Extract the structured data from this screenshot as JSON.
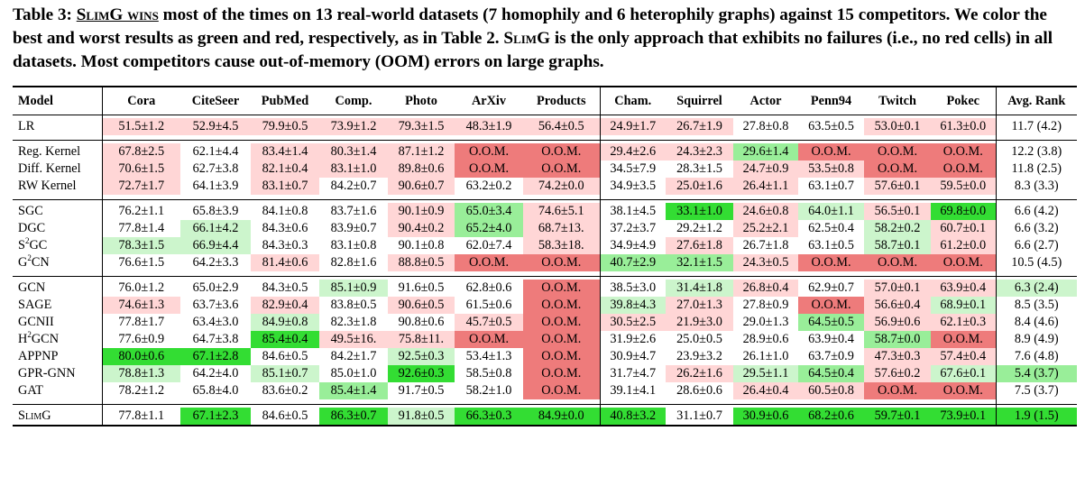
{
  "caption": {
    "label": "Table 3:",
    "highlight": "SlimG wins",
    "text1": " most of the times on 13 real-world datasets (7 homophily and 6 heterophily graphs) against 15 competitors. We color the best and worst results as green and red, respectively, as in Table 2. ",
    "method": "SlimG",
    "text2": " is the only approach that exhibits no failures (i.e., no red cells) in all datasets. Most competitors cause out-of-memory (OOM) errors on large graphs."
  },
  "headers": [
    "Model",
    "Cora",
    "CiteSeer",
    "PubMed",
    "Comp.",
    "Photo",
    "ArXiv",
    "Products",
    "Cham.",
    "Squirrel",
    "Actor",
    "Penn94",
    "Twitch",
    "Pokec",
    "Avg. Rank"
  ],
  "colors": {
    "green_light": "#ccf5cc",
    "green_mid": "#99ee99",
    "green_best": "#33dd33",
    "red_light": "#ffd6d6",
    "red_mid": "#f5a3a3",
    "red_worst": "#ee7b7b"
  },
  "groups": [
    [
      {
        "model": "LR",
        "cells": [
          [
            "51.5±1.2",
            "r1"
          ],
          [
            "52.9±4.5",
            "r1"
          ],
          [
            "79.9±0.5",
            "r1"
          ],
          [
            "73.9±1.2",
            "r1"
          ],
          [
            "79.3±1.5",
            "r1"
          ],
          [
            "48.3±1.9",
            "r1"
          ],
          [
            "56.4±0.5",
            "r1"
          ],
          [
            "24.9±1.7",
            "r1"
          ],
          [
            "26.7±1.9",
            "r1"
          ],
          [
            "27.8±0.8",
            ""
          ],
          [
            "63.5±0.5",
            ""
          ],
          [
            "53.0±0.1",
            "r1"
          ],
          [
            "61.3±0.0",
            "r1"
          ]
        ],
        "avg": "11.7 (4.2)",
        "avgc": ""
      }
    ],
    [
      {
        "model": "Reg. Kernel",
        "cells": [
          [
            "67.8±2.5",
            "r1"
          ],
          [
            "62.1±4.4",
            ""
          ],
          [
            "83.4±1.4",
            "r1"
          ],
          [
            "80.3±1.4",
            "r1"
          ],
          [
            "87.1±1.2",
            "r1"
          ],
          [
            "O.O.M.",
            "r3"
          ],
          [
            "O.O.M.",
            "r3"
          ],
          [
            "29.4±2.6",
            "r1"
          ],
          [
            "24.3±2.3",
            "r1"
          ],
          [
            "29.6±1.4",
            "g2"
          ],
          [
            "O.O.M.",
            "r3"
          ],
          [
            "O.O.M.",
            "r3"
          ],
          [
            "O.O.M.",
            "r3"
          ]
        ],
        "avg": "12.2 (3.8)",
        "avgc": ""
      },
      {
        "model": "Diff. Kernel",
        "cells": [
          [
            "70.6±1.5",
            "r1"
          ],
          [
            "62.7±3.8",
            ""
          ],
          [
            "82.1±0.4",
            "r1"
          ],
          [
            "83.1±1.0",
            "r1"
          ],
          [
            "89.8±0.6",
            "r1"
          ],
          [
            "O.O.M.",
            "r3"
          ],
          [
            "O.O.M.",
            "r3"
          ],
          [
            "34.5±7.9",
            ""
          ],
          [
            "28.3±1.5",
            ""
          ],
          [
            "24.7±0.9",
            "r1"
          ],
          [
            "53.5±0.8",
            "r1"
          ],
          [
            "O.O.M.",
            "r3"
          ],
          [
            "O.O.M.",
            "r3"
          ]
        ],
        "avg": "11.8 (2.5)",
        "avgc": ""
      },
      {
        "model": "RW Kernel",
        "cells": [
          [
            "72.7±1.7",
            "r1"
          ],
          [
            "64.1±3.9",
            ""
          ],
          [
            "83.1±0.7",
            "r1"
          ],
          [
            "84.2±0.7",
            ""
          ],
          [
            "90.6±0.7",
            "r1"
          ],
          [
            "63.2±0.2",
            ""
          ],
          [
            "74.2±0.0",
            "r1"
          ],
          [
            "34.9±3.5",
            ""
          ],
          [
            "25.0±1.6",
            "r1"
          ],
          [
            "26.4±1.1",
            "r1"
          ],
          [
            "63.1±0.7",
            ""
          ],
          [
            "57.6±0.1",
            "r1"
          ],
          [
            "59.5±0.0",
            "r1"
          ]
        ],
        "avg": "8.3 (3.3)",
        "avgc": ""
      }
    ],
    [
      {
        "model": "SGC",
        "cells": [
          [
            "76.2±1.1",
            ""
          ],
          [
            "65.8±3.9",
            ""
          ],
          [
            "84.1±0.8",
            ""
          ],
          [
            "83.7±1.6",
            ""
          ],
          [
            "90.1±0.9",
            "r1"
          ],
          [
            "65.0±3.4",
            "g2"
          ],
          [
            "74.6±5.1",
            "r1"
          ],
          [
            "38.1±4.5",
            ""
          ],
          [
            "33.1±1.0",
            "g3"
          ],
          [
            "24.6±0.8",
            "r1"
          ],
          [
            "64.0±1.1",
            "g1"
          ],
          [
            "56.5±0.1",
            "r1"
          ],
          [
            "69.8±0.0",
            "g3"
          ]
        ],
        "avg": "6.6 (4.2)",
        "avgc": ""
      },
      {
        "model": "DGC",
        "cells": [
          [
            "77.8±1.4",
            ""
          ],
          [
            "66.1±4.2",
            "g1"
          ],
          [
            "84.3±0.6",
            ""
          ],
          [
            "83.9±0.7",
            ""
          ],
          [
            "90.4±0.2",
            "r1"
          ],
          [
            "65.2±4.0",
            "g2"
          ],
          [
            "68.7±13.",
            "r1"
          ],
          [
            "37.2±3.7",
            ""
          ],
          [
            "29.2±1.2",
            ""
          ],
          [
            "25.2±2.1",
            "r1"
          ],
          [
            "62.5±0.4",
            ""
          ],
          [
            "58.2±0.2",
            "g1"
          ],
          [
            "60.7±0.1",
            "r1"
          ]
        ],
        "avg": "6.6 (3.2)",
        "avgc": ""
      },
      {
        "model": "S<sup>2</sup>GC",
        "cells": [
          [
            "78.3±1.5",
            "g1"
          ],
          [
            "66.9±4.4",
            "g1"
          ],
          [
            "84.3±0.3",
            ""
          ],
          [
            "83.1±0.8",
            ""
          ],
          [
            "90.1±0.8",
            ""
          ],
          [
            "62.0±7.4",
            ""
          ],
          [
            "58.3±18.",
            "r1"
          ],
          [
            "34.9±4.9",
            ""
          ],
          [
            "27.6±1.8",
            "r1"
          ],
          [
            "26.7±1.8",
            ""
          ],
          [
            "63.1±0.5",
            ""
          ],
          [
            "58.7±0.1",
            "g1"
          ],
          [
            "61.2±0.0",
            "r1"
          ]
        ],
        "avg": "6.6 (2.7)",
        "avgc": ""
      },
      {
        "model": "G<sup>2</sup>CN",
        "cells": [
          [
            "76.6±1.5",
            ""
          ],
          [
            "64.2±3.3",
            ""
          ],
          [
            "81.4±0.6",
            "r1"
          ],
          [
            "82.8±1.6",
            ""
          ],
          [
            "88.8±0.5",
            "r1"
          ],
          [
            "O.O.M.",
            "r3"
          ],
          [
            "O.O.M.",
            "r3"
          ],
          [
            "40.7±2.9",
            "g2"
          ],
          [
            "32.1±1.5",
            "g2"
          ],
          [
            "24.3±0.5",
            "r1"
          ],
          [
            "O.O.M.",
            "r3"
          ],
          [
            "O.O.M.",
            "r3"
          ],
          [
            "O.O.M.",
            "r3"
          ]
        ],
        "avg": "10.5 (4.5)",
        "avgc": ""
      }
    ],
    [
      {
        "model": "GCN",
        "cells": [
          [
            "76.0±1.2",
            ""
          ],
          [
            "65.0±2.9",
            ""
          ],
          [
            "84.3±0.5",
            ""
          ],
          [
            "85.1±0.9",
            "g1"
          ],
          [
            "91.6±0.5",
            ""
          ],
          [
            "62.8±0.6",
            ""
          ],
          [
            "O.O.M.",
            "r3"
          ],
          [
            "38.5±3.0",
            ""
          ],
          [
            "31.4±1.8",
            "g1"
          ],
          [
            "26.8±0.4",
            "r1"
          ],
          [
            "62.9±0.7",
            ""
          ],
          [
            "57.0±0.1",
            "r1"
          ],
          [
            "63.9±0.4",
            "r1"
          ]
        ],
        "avg": "6.3 (2.4)",
        "avgc": "g1"
      },
      {
        "model": "SAGE",
        "cells": [
          [
            "74.6±1.3",
            "r1"
          ],
          [
            "63.7±3.6",
            ""
          ],
          [
            "82.9±0.4",
            "r1"
          ],
          [
            "83.8±0.5",
            ""
          ],
          [
            "90.6±0.5",
            "r1"
          ],
          [
            "61.5±0.6",
            ""
          ],
          [
            "O.O.M.",
            "r3"
          ],
          [
            "39.8±4.3",
            "g1"
          ],
          [
            "27.0±1.3",
            "r1"
          ],
          [
            "27.8±0.9",
            ""
          ],
          [
            "O.O.M.",
            "r3"
          ],
          [
            "56.6±0.4",
            "r1"
          ],
          [
            "68.9±0.1",
            "g1"
          ]
        ],
        "avg": "8.5 (3.5)",
        "avgc": ""
      },
      {
        "model": "GCNII",
        "cells": [
          [
            "77.8±1.7",
            ""
          ],
          [
            "63.4±3.0",
            ""
          ],
          [
            "84.9±0.8",
            "g1"
          ],
          [
            "82.3±1.8",
            ""
          ],
          [
            "90.8±0.6",
            ""
          ],
          [
            "45.7±0.5",
            "r1"
          ],
          [
            "O.O.M.",
            "r3"
          ],
          [
            "30.5±2.5",
            "r1"
          ],
          [
            "21.9±3.0",
            "r1"
          ],
          [
            "29.0±1.3",
            ""
          ],
          [
            "64.5±0.5",
            "g2"
          ],
          [
            "56.9±0.6",
            "r1"
          ],
          [
            "62.1±0.3",
            "r1"
          ]
        ],
        "avg": "8.4 (4.6)",
        "avgc": ""
      },
      {
        "model": "H<sup>2</sup>GCN",
        "cells": [
          [
            "77.6±0.9",
            ""
          ],
          [
            "64.7±3.8",
            ""
          ],
          [
            "85.4±0.4",
            "g3"
          ],
          [
            "49.5±16.",
            "r1"
          ],
          [
            "75.8±11.",
            "r1"
          ],
          [
            "O.O.M.",
            "r3"
          ],
          [
            "O.O.M.",
            "r3"
          ],
          [
            "31.9±2.6",
            ""
          ],
          [
            "25.0±0.5",
            ""
          ],
          [
            "28.9±0.6",
            ""
          ],
          [
            "63.9±0.4",
            ""
          ],
          [
            "58.7±0.0",
            "g2"
          ],
          [
            "O.O.M.",
            "r3"
          ]
        ],
        "avg": "8.9 (4.9)",
        "avgc": ""
      },
      {
        "model": "APPNP",
        "cells": [
          [
            "80.0±0.6",
            "g3"
          ],
          [
            "67.1±2.8",
            "g3"
          ],
          [
            "84.6±0.5",
            ""
          ],
          [
            "84.2±1.7",
            ""
          ],
          [
            "92.5±0.3",
            "g1"
          ],
          [
            "53.4±1.3",
            ""
          ],
          [
            "O.O.M.",
            "r3"
          ],
          [
            "30.9±4.7",
            ""
          ],
          [
            "23.9±3.2",
            ""
          ],
          [
            "26.1±1.0",
            ""
          ],
          [
            "63.7±0.9",
            ""
          ],
          [
            "47.3±0.3",
            "r1"
          ],
          [
            "57.4±0.4",
            "r1"
          ]
        ],
        "avg": "7.6 (4.8)",
        "avgc": ""
      },
      {
        "model": "GPR-GNN",
        "cells": [
          [
            "78.8±1.3",
            "g1"
          ],
          [
            "64.2±4.0",
            ""
          ],
          [
            "85.1±0.7",
            "g1"
          ],
          [
            "85.0±1.0",
            ""
          ],
          [
            "92.6±0.3",
            "g3"
          ],
          [
            "58.5±0.8",
            ""
          ],
          [
            "O.O.M.",
            "r3"
          ],
          [
            "31.7±4.7",
            ""
          ],
          [
            "26.2±1.6",
            "r1"
          ],
          [
            "29.5±1.1",
            "g1"
          ],
          [
            "64.5±0.4",
            "g2"
          ],
          [
            "57.6±0.2",
            "r1"
          ],
          [
            "67.6±0.1",
            "g1"
          ]
        ],
        "avg": "5.4 (3.7)",
        "avgc": "g2"
      },
      {
        "model": "GAT",
        "cells": [
          [
            "78.2±1.2",
            ""
          ],
          [
            "65.8±4.0",
            ""
          ],
          [
            "83.6±0.2",
            ""
          ],
          [
            "85.4±1.4",
            "g2"
          ],
          [
            "91.7±0.5",
            ""
          ],
          [
            "58.2±1.0",
            ""
          ],
          [
            "O.O.M.",
            "r3"
          ],
          [
            "39.1±4.1",
            ""
          ],
          [
            "28.6±0.6",
            ""
          ],
          [
            "26.4±0.4",
            "r1"
          ],
          [
            "60.5±0.8",
            "r1"
          ],
          [
            "O.O.M.",
            "r3"
          ],
          [
            "O.O.M.",
            "r3"
          ]
        ],
        "avg": "7.5 (3.7)",
        "avgc": ""
      }
    ],
    [
      {
        "model": "SlimG",
        "cells": [
          [
            "77.8±1.1",
            ""
          ],
          [
            "67.1±2.3",
            "g3"
          ],
          [
            "84.6±0.5",
            ""
          ],
          [
            "86.3±0.7",
            "g3"
          ],
          [
            "91.8±0.5",
            "g1"
          ],
          [
            "66.3±0.3",
            "g3"
          ],
          [
            "84.9±0.0",
            "g3"
          ],
          [
            "40.8±3.2",
            "g3"
          ],
          [
            "31.1±0.7",
            ""
          ],
          [
            "30.9±0.6",
            "g3"
          ],
          [
            "68.2±0.6",
            "g3"
          ],
          [
            "59.7±0.1",
            "g3"
          ],
          [
            "73.9±0.1",
            "g3"
          ]
        ],
        "avg": "1.9 (1.5)",
        "avgc": "g3"
      }
    ]
  ]
}
